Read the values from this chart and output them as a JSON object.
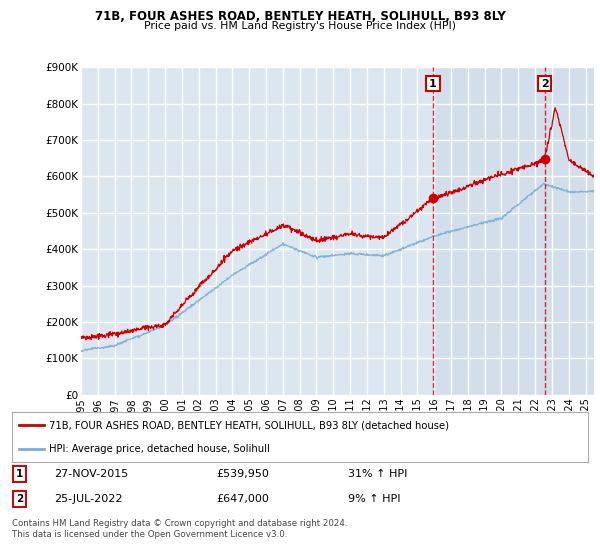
{
  "title1": "71B, FOUR ASHES ROAD, BENTLEY HEATH, SOLIHULL, B93 8LY",
  "title2": "Price paid vs. HM Land Registry's House Price Index (HPI)",
  "ylim": [
    0,
    900000
  ],
  "xlim_start": 1995.0,
  "xlim_end": 2025.5,
  "red_color": "#cc0000",
  "blue_color": "#7bafd4",
  "background_plot": "#dce6f0",
  "background_plot_right": "#ddeeff",
  "background_fig": "#ffffff",
  "grid_color": "#ffffff",
  "marker1_x": 2015.92,
  "marker1_y": 539950,
  "marker2_x": 2022.56,
  "marker2_y": 647000,
  "legend_label_red": "71B, FOUR ASHES ROAD, BENTLEY HEATH, SOLIHULL, B93 8LY (detached house)",
  "legend_label_blue": "HPI: Average price, detached house, Solihull",
  "xtick_years": [
    1995,
    1996,
    1997,
    1998,
    1999,
    2000,
    2001,
    2002,
    2003,
    2004,
    2005,
    2006,
    2007,
    2008,
    2009,
    2010,
    2011,
    2012,
    2013,
    2014,
    2015,
    2016,
    2017,
    2018,
    2019,
    2020,
    2021,
    2022,
    2023,
    2024,
    2025
  ]
}
